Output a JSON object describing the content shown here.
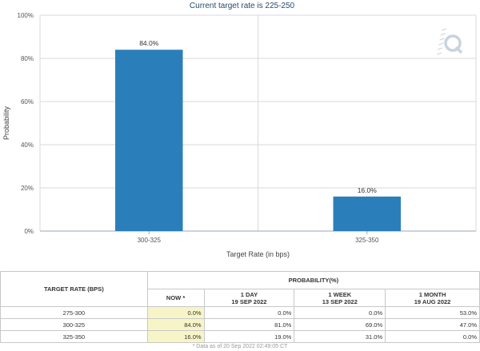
{
  "chart_data": {
    "type": "bar",
    "title": "Current target rate is 225-250",
    "categories": [
      "300-325",
      "325-350"
    ],
    "values": [
      84.0,
      16.0
    ],
    "value_labels": [
      "84.0%",
      "16.0%"
    ],
    "xlabel": "Target Rate (in bps)",
    "ylabel": "Probability",
    "ylim": [
      0,
      100
    ],
    "yticks": [
      0,
      20,
      40,
      60,
      80,
      100
    ],
    "ytick_labels": [
      "0%",
      "20%",
      "40%",
      "60%",
      "80%",
      "100%"
    ],
    "grid": true,
    "legend": "none",
    "bar_color": "#2a7fba"
  },
  "table": {
    "rate_header": "TARGET RATE (BPS)",
    "prob_header": "PROBABILITY(%)",
    "columns": [
      {
        "line1": "NOW *",
        "line2": ""
      },
      {
        "line1": "1 DAY",
        "line2": "19 SEP 2022"
      },
      {
        "line1": "1 WEEK",
        "line2": "13 SEP 2022"
      },
      {
        "line1": "1 MONTH",
        "line2": "19 AUG 2022"
      }
    ],
    "rows": [
      {
        "rate": "275-300",
        "values": [
          "0.0%",
          "0.0%",
          "0.0%",
          "53.0%"
        ]
      },
      {
        "rate": "300-325",
        "values": [
          "84.0%",
          "81.0%",
          "69.0%",
          "47.0%"
        ]
      },
      {
        "rate": "325-350",
        "values": [
          "16.0%",
          "19.0%",
          "31.0%",
          "0.0%"
        ]
      }
    ],
    "footnote": "* Data as of 20 Sep 2022 02:49:05 CT"
  }
}
